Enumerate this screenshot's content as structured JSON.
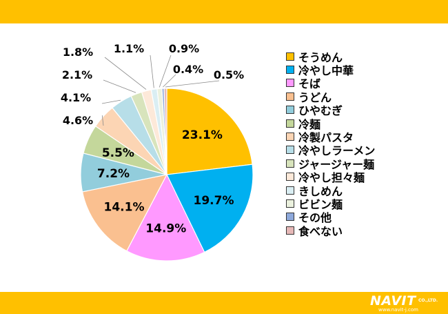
{
  "chart_data": {
    "type": "pie",
    "categories": [
      "そうめん",
      "冷やし中華",
      "そば",
      "うどん",
      "ひやむぎ",
      "冷麺",
      "冷製パスタ",
      "冷やしラーメン",
      "ジャージャー麺",
      "冷やし担々麺",
      "きしめん",
      "ビビン麺",
      "その他",
      "食べない"
    ],
    "values": [
      23.1,
      19.7,
      14.9,
      14.1,
      7.2,
      5.5,
      4.6,
      4.1,
      2.1,
      1.8,
      1.1,
      0.9,
      0.4,
      0.5
    ],
    "labels": [
      "23.1%",
      "19.7%",
      "14.9%",
      "14.1%",
      "7.2%",
      "5.5%",
      "4.6%",
      "4.1%",
      "2.1%",
      "1.8%",
      "1.1%",
      "0.9%",
      "0.4%",
      "0.5%"
    ],
    "colors": [
      "#ffc000",
      "#00b0f0",
      "#ff99ff",
      "#fac090",
      "#92cddc",
      "#c4d79b",
      "#fcd5b4",
      "#b7dee8",
      "#d8e4bc",
      "#fde9d9",
      "#daeef3",
      "#ebf1de",
      "#8ea9db",
      "#e6b8b7"
    ],
    "legend_position": "right"
  },
  "branding": {
    "logo_main": "NAVIT",
    "logo_company": "CO.,LTD.",
    "logo_url": "www.navit-j.com"
  }
}
